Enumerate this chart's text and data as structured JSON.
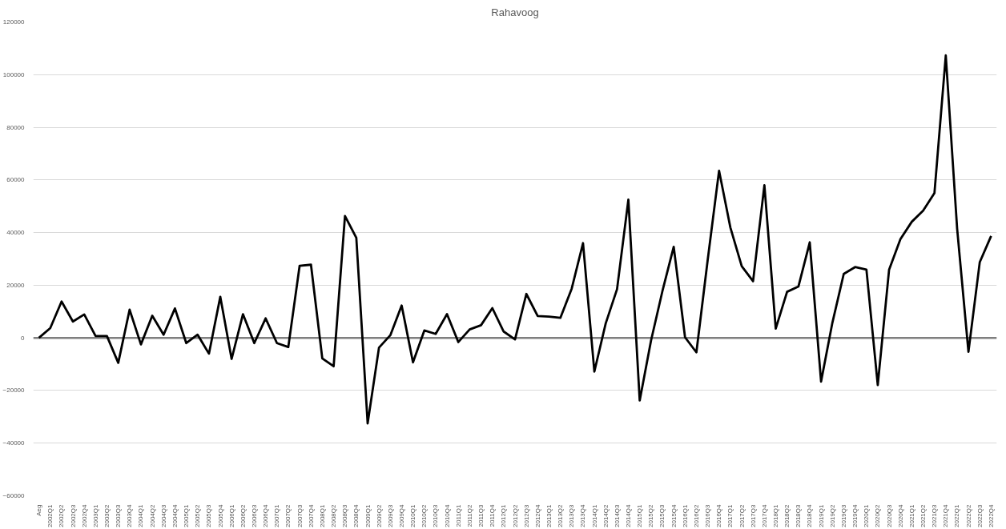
{
  "chart_data": {
    "type": "line",
    "title": "Rahavoog",
    "categories": [
      "Aeg",
      "2002Q1",
      "2002Q2",
      "2002Q3",
      "2002Q4",
      "2003Q1",
      "2003Q2",
      "2003Q3",
      "2003Q4",
      "2004Q1",
      "2004Q2",
      "2004Q3",
      "2004Q4",
      "2005Q1",
      "2005Q2",
      "2005Q3",
      "2005Q4",
      "2006Q1",
      "2006Q2",
      "2006Q3",
      "2006Q4",
      "2007Q1",
      "2007Q2",
      "2007Q3",
      "2007Q4",
      "2008Q1",
      "2008Q2",
      "2008Q3",
      "2008Q4",
      "2009Q1",
      "2009Q2",
      "2009Q3",
      "2009Q4",
      "2010Q1",
      "2010Q2",
      "2010Q3",
      "2010Q4",
      "2011Q1",
      "2011Q2",
      "2011Q3",
      "2011Q4",
      "2012Q1",
      "2012Q2",
      "2012Q3",
      "2012Q4",
      "2013Q1",
      "2013Q2",
      "2013Q3",
      "2013Q4",
      "2014Q1",
      "2014Q2",
      "2014Q3",
      "2014Q4",
      "2015Q1",
      "2015Q2",
      "2015Q3",
      "2015Q4",
      "2016Q1",
      "2016Q2",
      "2016Q3",
      "2016Q4",
      "2017Q1",
      "2017Q2",
      "2017Q3",
      "2017Q4",
      "2018Q1",
      "2018Q2",
      "2018Q3",
      "2018Q4",
      "2019Q1",
      "2019Q2",
      "2019Q3",
      "2019Q4",
      "2020Q1",
      "2020Q2",
      "2020Q3",
      "2020Q4",
      "2021Q1",
      "2021Q2",
      "2021Q3",
      "2021Q4",
      "2022Q1",
      "2022Q2",
      "2022Q3",
      "2022Q4"
    ],
    "series": [
      {
        "color": "#000000",
        "values": [
          0,
          3700,
          13800,
          6200,
          8900,
          700,
          700,
          -9500,
          10700,
          -2500,
          8400,
          1200,
          11200,
          -2000,
          1200,
          -6000,
          15600,
          -8000,
          9000,
          -2000,
          7400,
          -2000,
          -3500,
          27400,
          27800,
          -7800,
          -10800,
          46300,
          38000,
          -32500,
          -3700,
          1000,
          12300,
          -9300,
          2800,
          1500,
          9000,
          -1600,
          3200,
          4800,
          11300,
          2400,
          -600,
          16700,
          8300,
          8100,
          7600,
          18700,
          36000,
          -12800,
          5500,
          18500,
          52500,
          -23800,
          -1000,
          17700,
          34600,
          200,
          -5500,
          29700,
          63500,
          41900,
          27200,
          21500,
          58000,
          3500,
          17500,
          19500,
          36300,
          -16600,
          5800,
          24300,
          26900,
          25900,
          -17900,
          25900,
          37500,
          44100,
          48300,
          55000,
          107300,
          41600,
          -5300,
          28800,
          38700
        ]
      }
    ],
    "ylim": [
      -60000,
      120000
    ],
    "yticks": [
      -60000,
      -40000,
      -20000,
      0,
      20000,
      40000,
      60000,
      80000,
      100000,
      120000
    ],
    "grid": "y",
    "ref_lines": [
      {
        "axis": "y",
        "value": 0,
        "color": "#7f7f7f"
      }
    ],
    "line_style": "solid",
    "marker": "none"
  }
}
